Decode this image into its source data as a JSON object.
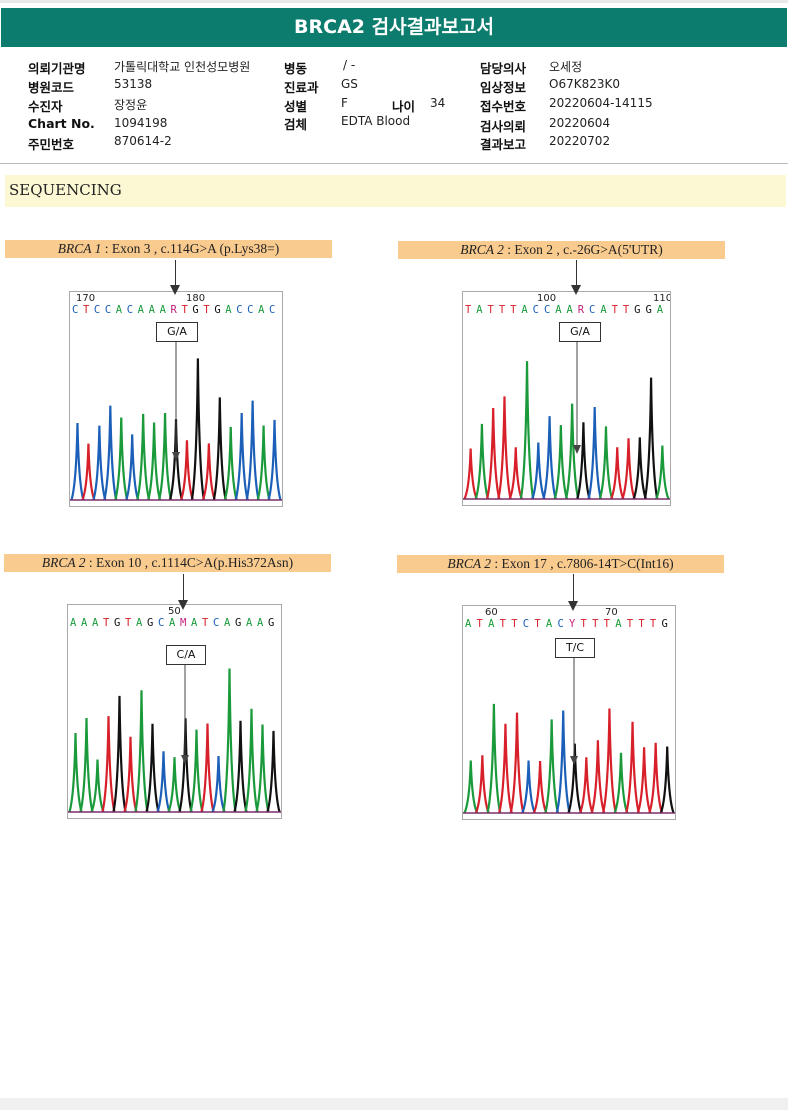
{
  "report_title": "BRCA2 검사결과보고서",
  "info": {
    "hospital_label": "의뢰기관명",
    "hospital_value": "가톨릭대학교 인천성모병원",
    "code_label": "병원코드",
    "code_value": "53138",
    "patient_label": "수진자",
    "patient_value": "장정윤",
    "chart_label": "Chart No.",
    "chart_value": "1094198",
    "rrn_label": "주민번호",
    "rrn_value": "870614-2",
    "ward_label": "병동",
    "ward_value": "/ -",
    "dept_label": "진료과",
    "dept_value": "GS",
    "sex_label": "성별",
    "sex_value": "F",
    "age_label": "나이",
    "age_value": "34",
    "specimen_label": "검체",
    "specimen_value": "EDTA Blood",
    "doctor_label": "담당의사",
    "doctor_value": "오세정",
    "clinical_label": "임상정보",
    "clinical_value": "O67K823K0",
    "receipt_label": "접수번호",
    "receipt_value": "20220604-14115",
    "request_label": "검사의뢰",
    "request_value": "20220604",
    "result_label": "결과보고",
    "result_value": "20220702"
  },
  "section_title": "SEQUENCING",
  "panels": [
    {
      "gene": "BRCA 1",
      "desc": " : Exon 3 , c.114G>A (p.Lys38=)",
      "call": "G/A",
      "pos_left": "170",
      "pos_right": "180",
      "seq": "CTCCACAAARTGTGACCAC"
    },
    {
      "gene": "BRCA 2",
      "desc": " : Exon 2 , c.-26G>A(5'UTR)",
      "call": "G/A",
      "pos_left": "100",
      "pos_right": "110",
      "seq": "TATTTACCAARCATTGGA"
    },
    {
      "gene": "BRCA 2",
      "desc": " : Exon 10 , c.1114C>A(p.His372Asn)",
      "call": "C/A",
      "pos_left": "50",
      "pos_right": "",
      "seq": "AAATGTAGCAMATCAGAAG"
    },
    {
      "gene": "BRCA 2",
      "desc": " : Exon 17 , c.7806-14T>C(Int16)",
      "call": "T/C",
      "pos_left": "60",
      "pos_right": "70",
      "seq": "ATATTCTACYTTTATTTG"
    }
  ],
  "colors": {
    "A": "#1a9a3a",
    "C": "#1b5fb8",
    "G": "#111111",
    "T": "#d8202a",
    "header": "#0b7c6e",
    "panel_title": "#f9cb8f"
  }
}
